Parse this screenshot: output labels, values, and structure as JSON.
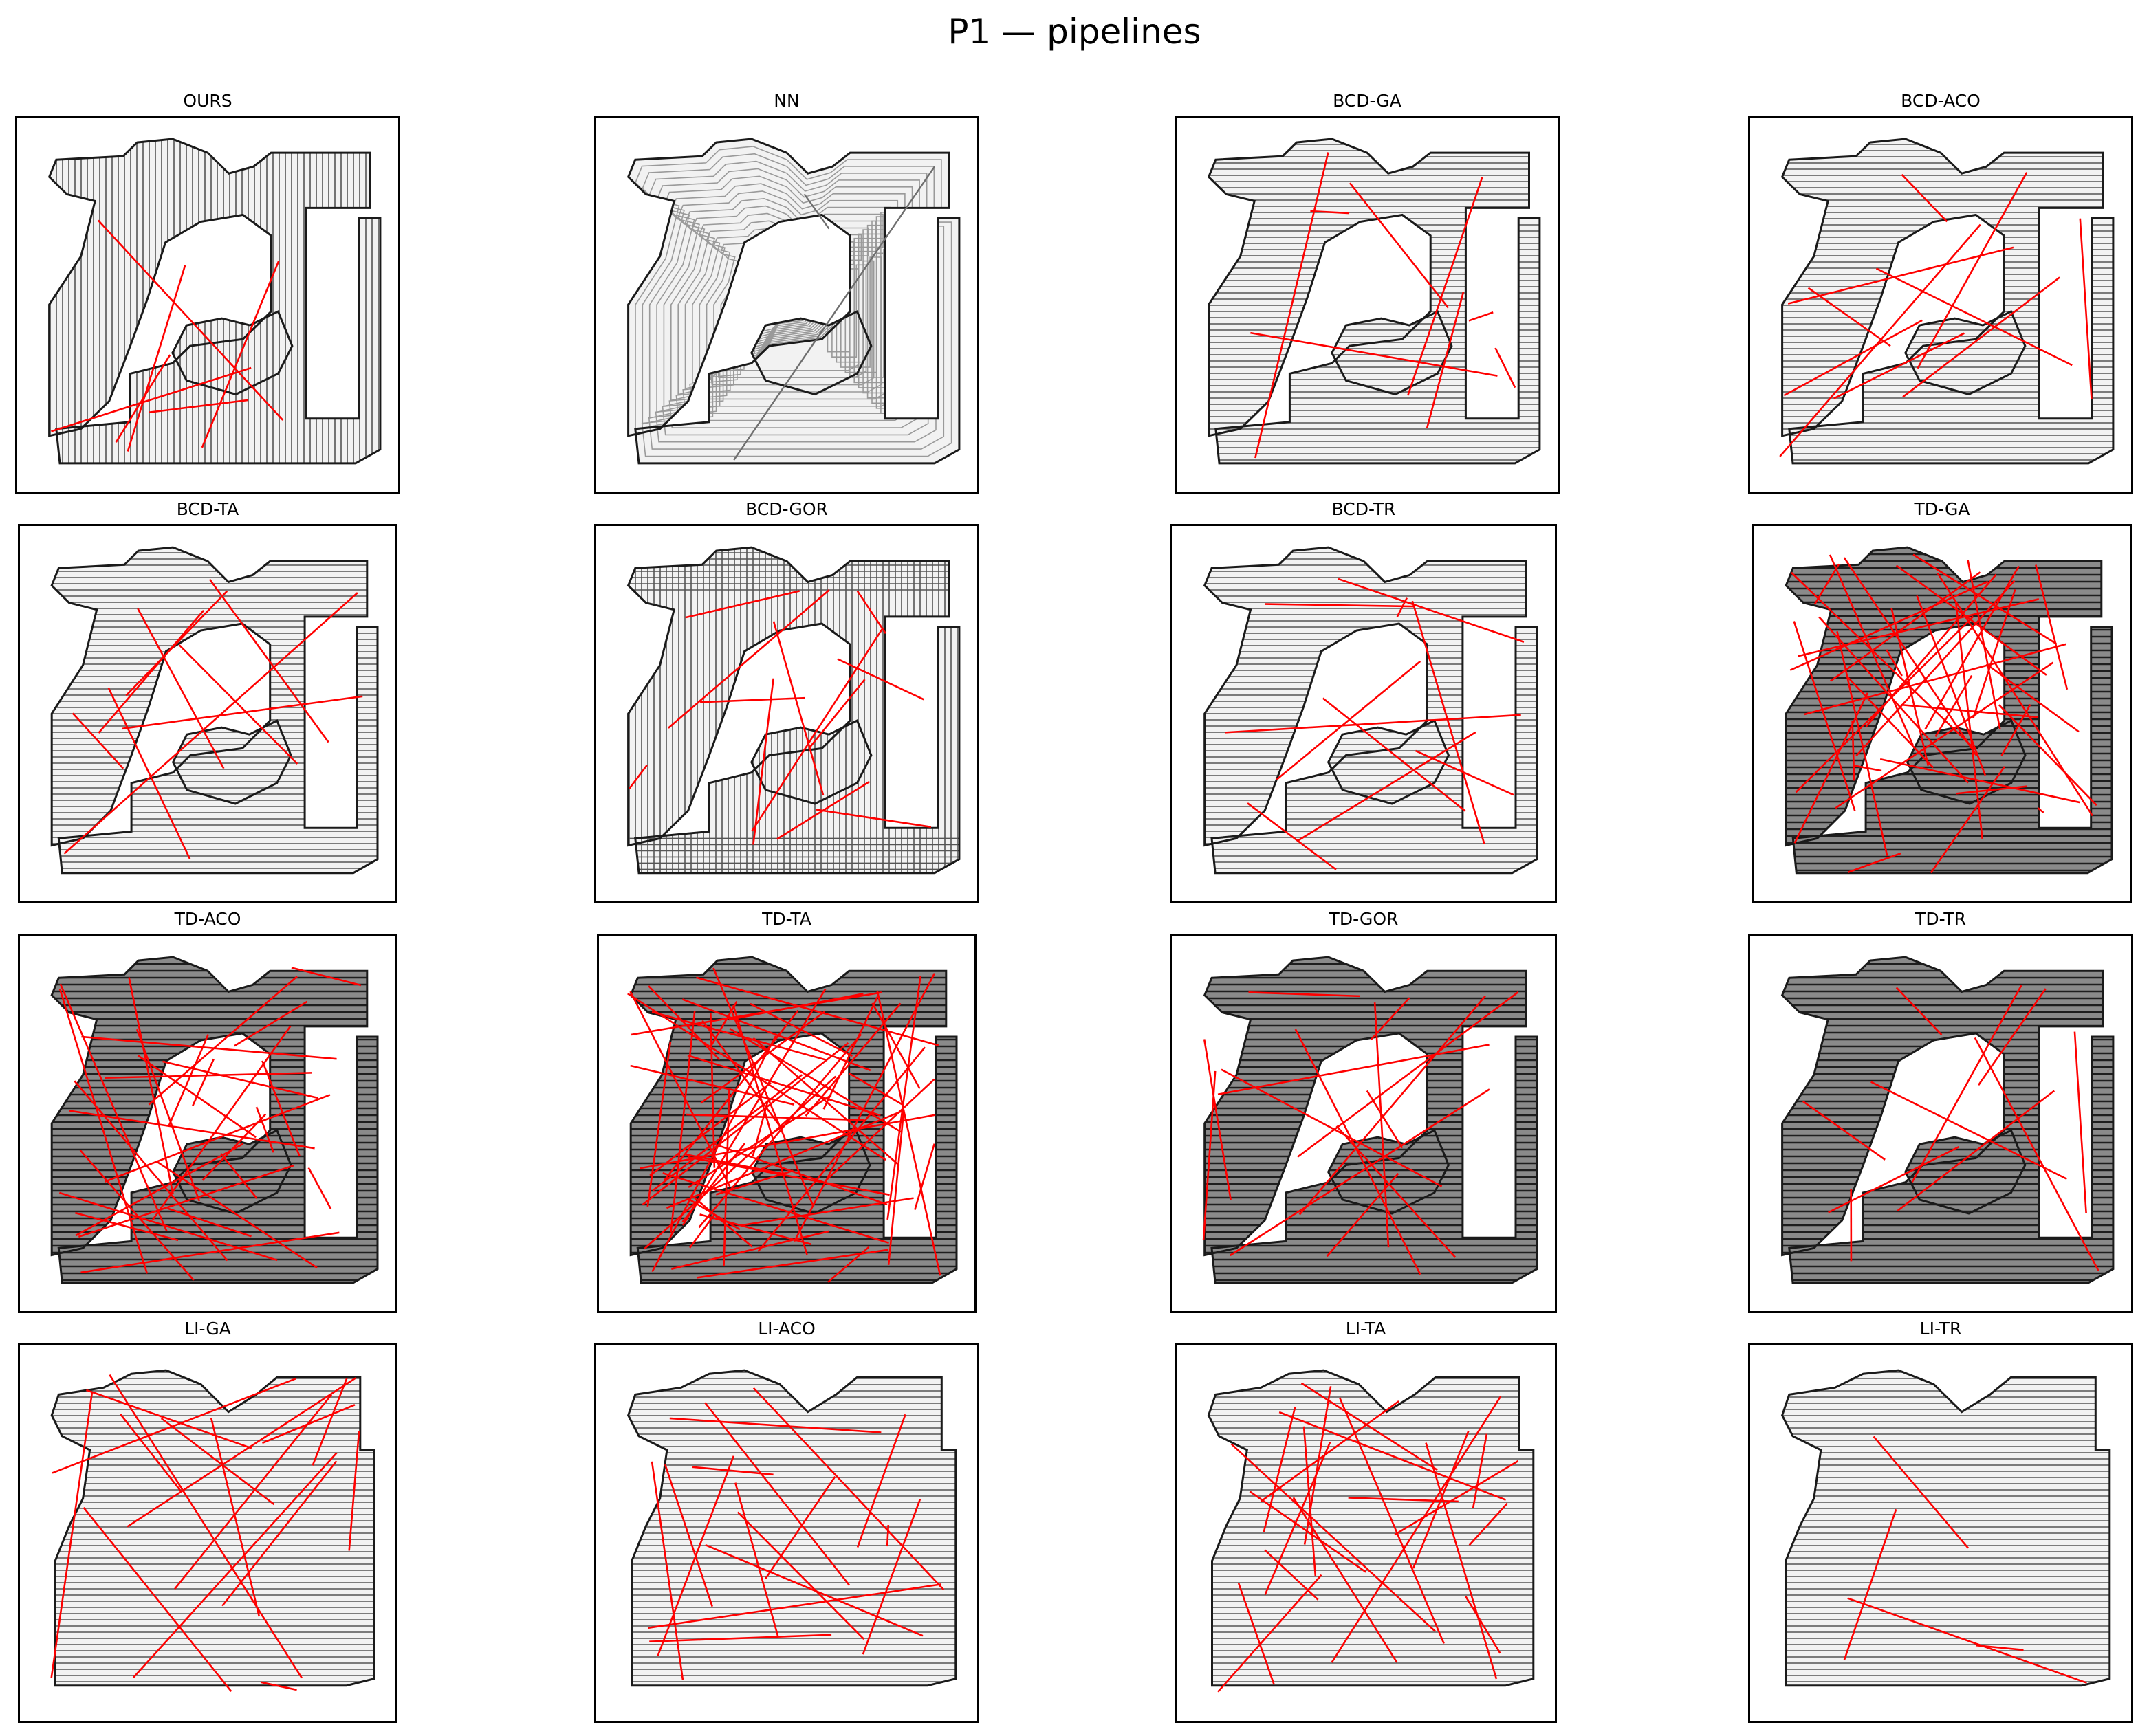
{
  "figure": {
    "title": "P1 — pipelines"
  },
  "colors": {
    "frame": "#000000",
    "outline": "#1a1a1a",
    "sweep": "#555555",
    "sweep_light": "#9a9a9a",
    "fill_light": "#f2f2f2",
    "fill_dark": "#8a8a8a",
    "transition": "#ff0000",
    "nn_path": "#6e6e6e"
  },
  "panels": [
    {
      "id": "ours",
      "title": "OURS",
      "orientation": "vertical",
      "shading": "light",
      "transitions": 6
    },
    {
      "id": "nn",
      "title": "NN",
      "orientation": "contour",
      "shading": "light",
      "transitions": 0
    },
    {
      "id": "bcd-ga",
      "title": "BCD-GA",
      "orientation": "horizontal",
      "shading": "light",
      "transitions": 8
    },
    {
      "id": "bcd-aco",
      "title": "BCD-ACO",
      "orientation": "horizontal",
      "shading": "light",
      "transitions": 10
    },
    {
      "id": "bcd-ta",
      "title": "BCD-TA",
      "orientation": "horizontal",
      "shading": "light",
      "transitions": 9
    },
    {
      "id": "bcd-gor",
      "title": "BCD-GOR",
      "orientation": "mixed",
      "shading": "light",
      "transitions": 12
    },
    {
      "id": "bcd-tr",
      "title": "BCD-TR",
      "orientation": "horizontal",
      "shading": "light",
      "transitions": 10
    },
    {
      "id": "td-ga",
      "title": "TD-GA",
      "orientation": "horizontal",
      "shading": "dark",
      "transitions": 40
    },
    {
      "id": "td-aco",
      "title": "TD-ACO",
      "orientation": "horizontal",
      "shading": "dark",
      "transitions": 30
    },
    {
      "id": "td-ta",
      "title": "TD-TA",
      "orientation": "horizontal",
      "shading": "dark",
      "transitions": 60
    },
    {
      "id": "td-gor",
      "title": "TD-GOR",
      "orientation": "horizontal",
      "shading": "dark",
      "transitions": 14
    },
    {
      "id": "td-tr",
      "title": "TD-TR",
      "orientation": "horizontal",
      "shading": "dark",
      "transitions": 10
    },
    {
      "id": "li-ga",
      "title": "LI-GA",
      "orientation": "horizontal",
      "shading": "mixed",
      "transitions": 16
    },
    {
      "id": "li-aco",
      "title": "LI-ACO",
      "orientation": "horizontal",
      "shading": "mixed",
      "transitions": 16
    },
    {
      "id": "li-ta",
      "title": "LI-TA",
      "orientation": "horizontal",
      "shading": "mixed",
      "transitions": 22
    },
    {
      "id": "li-tr",
      "title": "LI-TR",
      "orientation": "horizontal",
      "shading": "mixed",
      "transitions": 4
    }
  ]
}
